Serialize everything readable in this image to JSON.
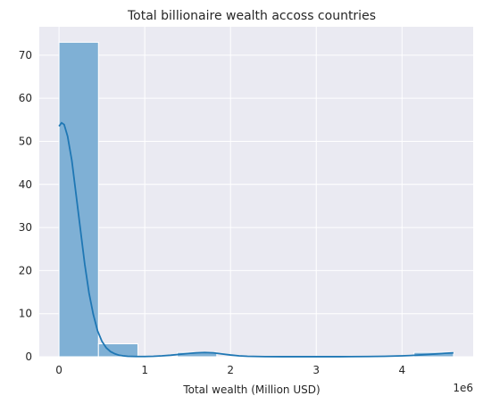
{
  "chart_data": {
    "type": "histogram",
    "title": "Total billionaire wealth accoss countries",
    "xlabel": "Total wealth (Million USD)",
    "ylabel": "",
    "x_offset_text": "1e6",
    "xlim": [
      -230000,
      4830000
    ],
    "ylim": [
      0,
      76.6
    ],
    "x_ticks": [
      0,
      1000000,
      2000000,
      3000000,
      4000000
    ],
    "x_tick_labels": [
      "0",
      "1",
      "2",
      "3",
      "4"
    ],
    "y_ticks": [
      0,
      10,
      20,
      30,
      40,
      50,
      60,
      70
    ],
    "y_tick_labels": [
      "0",
      "10",
      "20",
      "30",
      "40",
      "50",
      "60",
      "70"
    ],
    "grid": true,
    "style": "seaborn darkgrid",
    "bins": [
      {
        "x0": 0,
        "x1": 460000,
        "count": 73
      },
      {
        "x0": 460000,
        "x1": 920000,
        "count": 3
      },
      {
        "x0": 920000,
        "x1": 1380000,
        "count": 0
      },
      {
        "x0": 1380000,
        "x1": 1840000,
        "count": 1
      },
      {
        "x0": 1840000,
        "x1": 2300000,
        "count": 0
      },
      {
        "x0": 2300000,
        "x1": 2760000,
        "count": 0
      },
      {
        "x0": 2760000,
        "x1": 3220000,
        "count": 0
      },
      {
        "x0": 3220000,
        "x1": 3680000,
        "count": 0
      },
      {
        "x0": 3680000,
        "x1": 4140000,
        "count": 0
      },
      {
        "x0": 4140000,
        "x1": 4600000,
        "count": 1
      }
    ],
    "kde": {
      "x": [
        0,
        30000,
        60000,
        100000,
        150000,
        200000,
        250000,
        300000,
        350000,
        400000,
        450000,
        500000,
        550000,
        600000,
        650000,
        700000,
        750000,
        800000,
        900000,
        1000000,
        1100000,
        1200000,
        1300000,
        1400000,
        1500000,
        1600000,
        1700000,
        1800000,
        1900000,
        2000000,
        2100000,
        2200000,
        2400000,
        2600000,
        2800000,
        3000000,
        3200000,
        3400000,
        3600000,
        3800000,
        4000000,
        4100000,
        4200000,
        4300000,
        4400000,
        4500000,
        4600000
      ],
      "y": [
        53.5,
        54.3,
        53.9,
        51.2,
        45.5,
        37.5,
        29.5,
        21.5,
        14.8,
        9.8,
        6.0,
        3.6,
        2.1,
        1.2,
        0.7,
        0.35,
        0.2,
        0.1,
        0.05,
        0.05,
        0.1,
        0.2,
        0.35,
        0.55,
        0.75,
        0.9,
        0.98,
        0.9,
        0.65,
        0.4,
        0.2,
        0.1,
        0.03,
        0.01,
        0.01,
        0.01,
        0.01,
        0.02,
        0.05,
        0.1,
        0.2,
        0.28,
        0.4,
        0.52,
        0.66,
        0.8,
        0.9
      ]
    },
    "colors": {
      "background": "#eaeaf2",
      "grid": "#ffffff",
      "bar_fill": "#7fb0d5",
      "bar_edge": "#ffffff",
      "kde_line": "#1f77b4"
    }
  }
}
